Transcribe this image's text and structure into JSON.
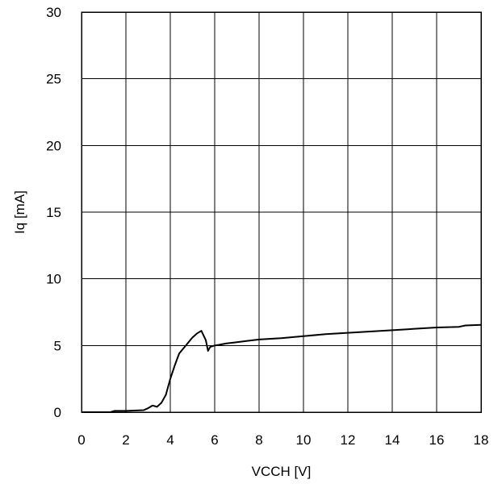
{
  "chart_data": {
    "type": "line",
    "title": "",
    "xlabel": "VCCH [V]",
    "ylabel": "Iq [mA]",
    "xlim": [
      0,
      18
    ],
    "ylim": [
      0,
      30
    ],
    "x_ticks": [
      0,
      2,
      4,
      6,
      8,
      10,
      12,
      14,
      16,
      18
    ],
    "y_ticks": [
      0,
      5,
      10,
      15,
      20,
      25,
      30
    ],
    "grid": true,
    "legend": "none",
    "line_color": "#000000",
    "series": [
      {
        "x": [
          0,
          1.3,
          1.5,
          2.0,
          2.8,
          3.0,
          3.2,
          3.4,
          3.6,
          3.8,
          4.0,
          4.2,
          4.4,
          4.8,
          5.0,
          5.2,
          5.4,
          5.6,
          5.7,
          5.8,
          6.0,
          6.2,
          6.5,
          7.0,
          7.5,
          8.0,
          9.0,
          10.0,
          11.0,
          12.0,
          13.0,
          14.0,
          15.0,
          16.0,
          17.0,
          17.3,
          18.0
        ],
        "y": [
          0,
          0,
          0.1,
          0.1,
          0.15,
          0.3,
          0.5,
          0.4,
          0.7,
          1.3,
          2.5,
          3.5,
          4.4,
          5.2,
          5.6,
          5.9,
          6.1,
          5.4,
          4.6,
          4.9,
          5.0,
          5.05,
          5.15,
          5.25,
          5.35,
          5.45,
          5.55,
          5.7,
          5.85,
          5.95,
          6.05,
          6.15,
          6.25,
          6.35,
          6.4,
          6.5,
          6.55
        ]
      }
    ]
  }
}
